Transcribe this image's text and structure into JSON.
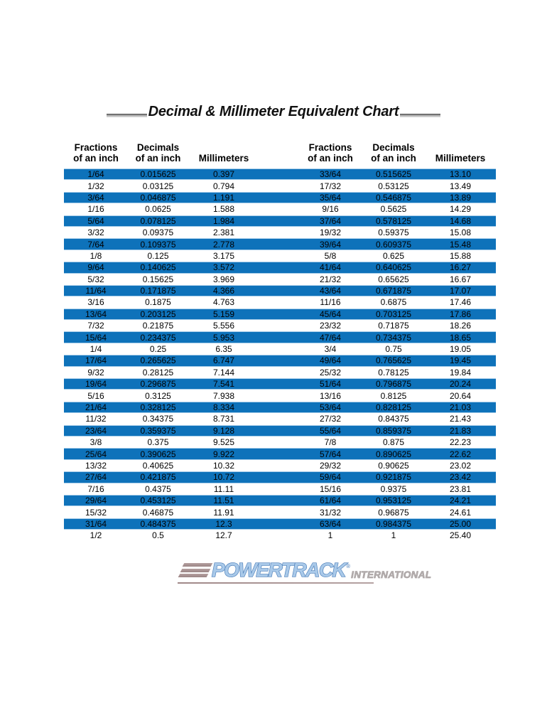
{
  "page": {
    "title": "Decimal & Millimeter Equivalent Chart"
  },
  "table": {
    "headers": {
      "fractions_line1": "Fractions",
      "fractions_line2": "of an inch",
      "decimals_line1": "Decimals",
      "decimals_line2": "of an inch",
      "millimeters": "Millimeters"
    },
    "left_rows": [
      [
        "1/64",
        "0.015625",
        "0.397"
      ],
      [
        "1/32",
        "0.03125",
        "0.794"
      ],
      [
        "3/64",
        "0.046875",
        "1.191"
      ],
      [
        "1/16",
        "0.0625",
        "1.588"
      ],
      [
        "5/64",
        "0.078125",
        "1.984"
      ],
      [
        "3/32",
        "0.09375",
        "2.381"
      ],
      [
        "7/64",
        "0.109375",
        "2.778"
      ],
      [
        "1/8",
        "0.125",
        "3.175"
      ],
      [
        "9/64",
        "0.140625",
        "3.572"
      ],
      [
        "5/32",
        "0.15625",
        "3.969"
      ],
      [
        "11/64",
        "0.171875",
        "4.366"
      ],
      [
        "3/16",
        "0.1875",
        "4.763"
      ],
      [
        "13/64",
        "0.203125",
        "5.159"
      ],
      [
        "7/32",
        "0.21875",
        "5.556"
      ],
      [
        "15/64",
        "0.234375",
        "5.953"
      ],
      [
        "1/4",
        "0.25",
        "6.35"
      ],
      [
        "17/64",
        "0.265625",
        "6.747"
      ],
      [
        "9/32",
        "0.28125",
        "7.144"
      ],
      [
        "19/64",
        "0.296875",
        "7.541"
      ],
      [
        "5/16",
        "0.3125",
        "7.938"
      ],
      [
        "21/64",
        "0.328125",
        "8.334"
      ],
      [
        "11/32",
        "0.34375",
        "8.731"
      ],
      [
        "23/64",
        "0.359375",
        "9.128"
      ],
      [
        "3/8",
        "0.375",
        "9.525"
      ],
      [
        "25/64",
        "0.390625",
        "9.922"
      ],
      [
        "13/32",
        "0.40625",
        "10.32"
      ],
      [
        "27/64",
        "0.421875",
        "10.72"
      ],
      [
        "7/16",
        "0.4375",
        "11.11"
      ],
      [
        "29/64",
        "0.453125",
        "11.51"
      ],
      [
        "15/32",
        "0.46875",
        "11.91"
      ],
      [
        "31/64",
        "0.484375",
        "12.3"
      ],
      [
        "1/2",
        "0.5",
        "12.7"
      ]
    ],
    "right_rows": [
      [
        "33/64",
        "0.515625",
        "13.10"
      ],
      [
        "17/32",
        "0.53125",
        "13.49"
      ],
      [
        "35/64",
        "0.546875",
        "13.89"
      ],
      [
        "9/16",
        "0.5625",
        "14.29"
      ],
      [
        "37/64",
        "0.578125",
        "14.68"
      ],
      [
        "19/32",
        "0.59375",
        "15.08"
      ],
      [
        "39/64",
        "0.609375",
        "15.48"
      ],
      [
        "5/8",
        "0.625",
        "15.88"
      ],
      [
        "41/64",
        "0.640625",
        "16.27"
      ],
      [
        "21/32",
        "0.65625",
        "16.67"
      ],
      [
        "43/64",
        "0.671875",
        "17.07"
      ],
      [
        "11/16",
        "0.6875",
        "17.46"
      ],
      [
        "45/64",
        "0.703125",
        "17.86"
      ],
      [
        "23/32",
        "0.71875",
        "18.26"
      ],
      [
        "47/64",
        "0.734375",
        "18.65"
      ],
      [
        "3/4",
        "0.75",
        "19.05"
      ],
      [
        "49/64",
        "0.765625",
        "19.45"
      ],
      [
        "25/32",
        "0.78125",
        "19.84"
      ],
      [
        "51/64",
        "0.796875",
        "20.24"
      ],
      [
        "13/16",
        "0.8125",
        "20.64"
      ],
      [
        "53/64",
        "0.828125",
        "21.03"
      ],
      [
        "27/32",
        "0.84375",
        "21.43"
      ],
      [
        "55/64",
        "0.859375",
        "21.83"
      ],
      [
        "7/8",
        "0.875",
        "22.23"
      ],
      [
        "57/64",
        "0.890625",
        "22.62"
      ],
      [
        "29/32",
        "0.90625",
        "23.02"
      ],
      [
        "59/64",
        "0.921875",
        "23.42"
      ],
      [
        "15/16",
        "0.9375",
        "23.81"
      ],
      [
        "61/64",
        "0.953125",
        "24.21"
      ],
      [
        "31/32",
        "0.96875",
        "24.61"
      ],
      [
        "63/64",
        "0.984375",
        "25.00"
      ],
      [
        "1",
        "1",
        "25.40"
      ]
    ]
  },
  "logo": {
    "brand": "POWERTRACK",
    "registered_mark": "®",
    "subtitle": "INTERNATIONAL"
  },
  "colors": {
    "row_highlight_blue": "#0e72ba",
    "row_border_light_blue": "#a6cce9",
    "logo_text_light_blue": "#a9c9e9",
    "logo_text_outline_blue": "#4a7db8",
    "logo_taupe": "#a08888",
    "title_underline_gray": "#b5b5b5"
  }
}
